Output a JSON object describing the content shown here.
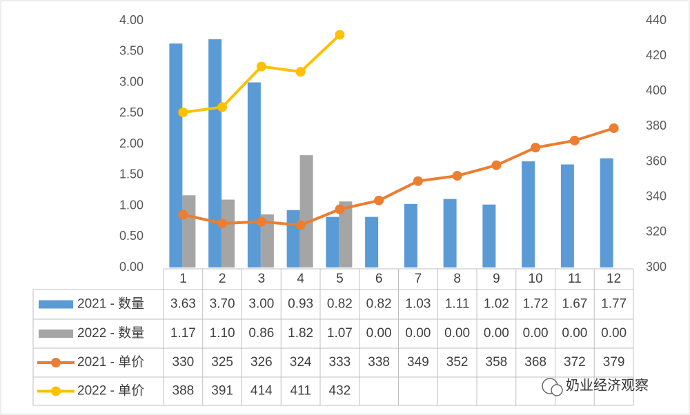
{
  "chart_data": {
    "type": "bar",
    "categories": [
      "1",
      "2",
      "3",
      "4",
      "5",
      "6",
      "7",
      "8",
      "9",
      "10",
      "11",
      "12"
    ],
    "series": [
      {
        "name": "2021 - 数量",
        "type": "bar",
        "color": "#5b9bd5",
        "values": [
          3.63,
          3.7,
          3.0,
          0.93,
          0.82,
          0.82,
          1.03,
          1.11,
          1.02,
          1.72,
          1.67,
          1.77
        ],
        "value_labels": [
          "3.63",
          "3.70",
          "3.00",
          "0.93",
          "0.82",
          "0.82",
          "1.03",
          "1.11",
          "1.02",
          "1.72",
          "1.67",
          "1.77"
        ]
      },
      {
        "name": "2022 - 数量",
        "type": "bar",
        "color": "#a5a5a5",
        "values": [
          1.17,
          1.1,
          0.86,
          1.82,
          1.07,
          0,
          0,
          0,
          0,
          0,
          0,
          0
        ],
        "value_labels": [
          "1.17",
          "1.10",
          "0.86",
          "1.82",
          "1.07",
          "0.00",
          "0.00",
          "0.00",
          "0.00",
          "0.00",
          "0.00",
          "0.00"
        ]
      },
      {
        "name": "2021 - 单价",
        "type": "line",
        "axis": "y2",
        "color": "#ed7d31",
        "values": [
          330,
          325,
          326,
          324,
          333,
          338,
          349,
          352,
          358,
          368,
          372,
          379
        ]
      },
      {
        "name": "2022 - 单价",
        "type": "line",
        "axis": "y2",
        "color": "#ffc000",
        "values": [
          388,
          391,
          414,
          411,
          432,
          null,
          null,
          null,
          null,
          null,
          null,
          null
        ]
      }
    ],
    "ylim": [
      0,
      4
    ],
    "yticks": [
      {
        "value": 0,
        "label": "0.00"
      },
      {
        "value": 0.5,
        "label": "0.50"
      },
      {
        "value": 1,
        "label": "1.00"
      },
      {
        "value": 1.5,
        "label": "1.50"
      },
      {
        "value": 2,
        "label": "2.00"
      },
      {
        "value": 2.5,
        "label": "2.50"
      },
      {
        "value": 3,
        "label": "3.00"
      },
      {
        "value": 3.5,
        "label": "3.50"
      },
      {
        "value": 4,
        "label": "4.00"
      }
    ],
    "y2lim": [
      300,
      440
    ],
    "y2ticks": [
      300,
      320,
      340,
      360,
      380,
      400,
      420,
      440
    ],
    "grid": false,
    "watermark": "奶业经济观察"
  }
}
